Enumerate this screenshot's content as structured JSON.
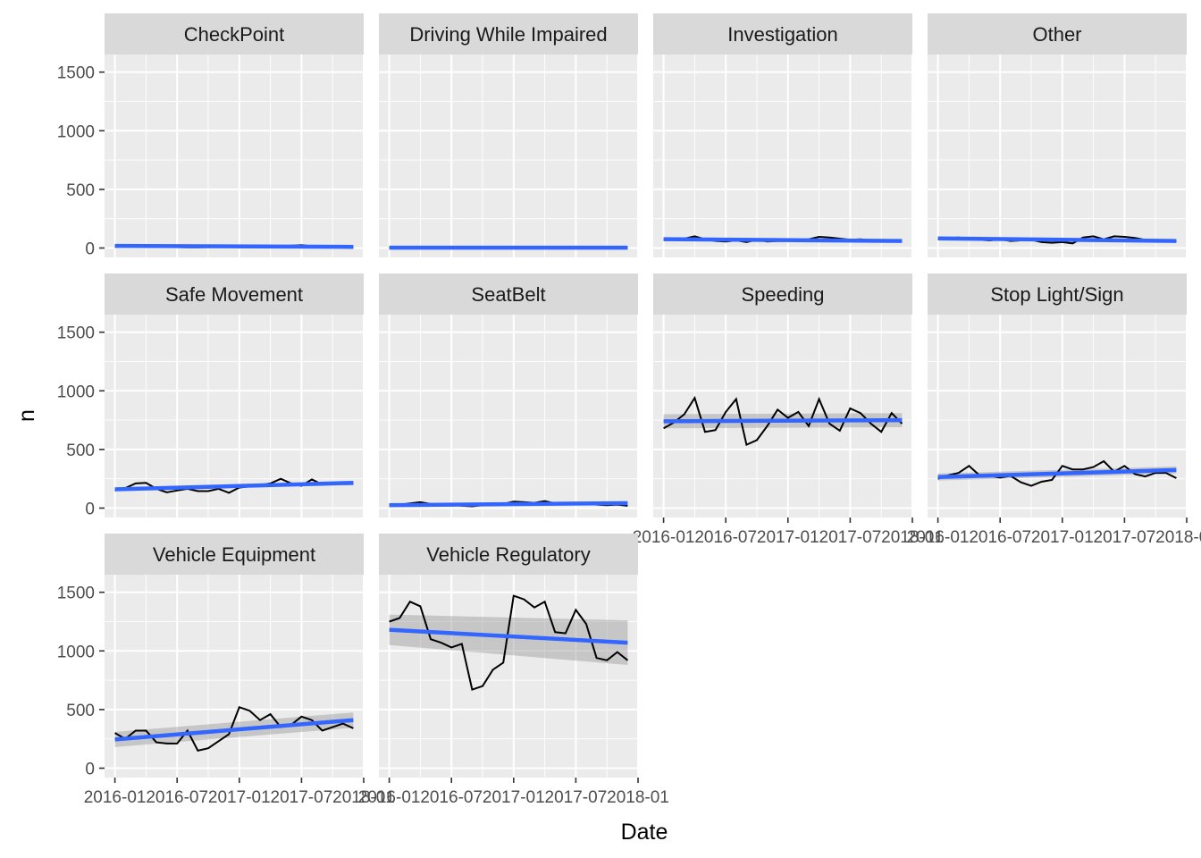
{
  "chart_data": {
    "type": "line",
    "facet_layout": "wrap",
    "xlabel": "Date",
    "ylabel": "n",
    "x_ticks": [
      "2016-01",
      "2016-07",
      "2017-01",
      "2017-07",
      "2018-01"
    ],
    "y_ticks": [
      0,
      500,
      1000,
      1500
    ],
    "ylim": [
      -80,
      1650
    ],
    "xlim": [
      "2015-12-01",
      "2018-01-01"
    ],
    "grid": true,
    "series_color": "#000000",
    "smooth_color": "#3366FF",
    "band_color": "#999999",
    "panel_bg": "#EBEBEB",
    "strip_bg": "#D9D9D9",
    "dates": [
      "2016-01",
      "2016-02",
      "2016-03",
      "2016-04",
      "2016-05",
      "2016-06",
      "2016-07",
      "2016-08",
      "2016-09",
      "2016-10",
      "2016-11",
      "2016-12",
      "2017-01",
      "2017-02",
      "2017-03",
      "2017-04",
      "2017-05",
      "2017-06",
      "2017-07",
      "2017-08",
      "2017-09",
      "2017-10",
      "2017-11",
      "2017-12"
    ],
    "panels": [
      {
        "name": "CheckPoint",
        "values": [
          10,
          12,
          18,
          25,
          15,
          10,
          8,
          6,
          5,
          8,
          10,
          12,
          8,
          7,
          12,
          10,
          15,
          20,
          25,
          15,
          12,
          10,
          8,
          5
        ],
        "trend": [
          18,
          10
        ],
        "band": [
          5,
          5
        ]
      },
      {
        "name": "Driving While Impaired",
        "values": [
          2,
          3,
          2,
          4,
          3,
          2,
          3,
          2,
          3,
          2,
          3,
          2,
          3,
          2,
          3,
          2,
          3,
          2,
          3,
          2,
          3,
          2,
          3,
          2
        ],
        "trend": [
          3,
          3
        ],
        "band": [
          2,
          2
        ]
      },
      {
        "name": "Investigation",
        "values": [
          68,
          72,
          80,
          100,
          75,
          60,
          55,
          65,
          50,
          70,
          55,
          60,
          62,
          70,
          75,
          95,
          90,
          80,
          70,
          75,
          65,
          55,
          60,
          55
        ],
        "trend": [
          75,
          60
        ],
        "band": [
          8,
          8
        ]
      },
      {
        "name": "Other",
        "values": [
          75,
          85,
          90,
          80,
          70,
          65,
          75,
          60,
          65,
          70,
          50,
          45,
          50,
          40,
          90,
          100,
          75,
          100,
          95,
          85,
          70,
          65,
          60,
          55
        ],
        "trend": [
          82,
          60
        ],
        "band": [
          8,
          8
        ]
      },
      {
        "name": "Safe Movement",
        "values": [
          150,
          170,
          210,
          215,
          165,
          135,
          150,
          165,
          145,
          145,
          165,
          130,
          175,
          185,
          195,
          210,
          250,
          210,
          190,
          245,
          200,
          210,
          205,
          205
        ],
        "trend": [
          160,
          215
        ],
        "band": [
          15,
          15
        ]
      },
      {
        "name": "SeatBelt",
        "values": [
          25,
          30,
          40,
          50,
          35,
          25,
          30,
          20,
          15,
          25,
          30,
          35,
          55,
          50,
          45,
          60,
          40,
          35,
          40,
          35,
          30,
          25,
          30,
          20
        ],
        "trend": [
          25,
          42
        ],
        "band": [
          6,
          6
        ]
      },
      {
        "name": "Speeding",
        "values": [
          680,
          730,
          800,
          940,
          650,
          665,
          820,
          930,
          540,
          580,
          700,
          840,
          770,
          820,
          700,
          930,
          720,
          660,
          850,
          810,
          720,
          650,
          810,
          720
        ],
        "trend": [
          740,
          750
        ],
        "band": [
          60,
          60
        ]
      },
      {
        "name": "Stop Light/Sign",
        "values": [
          250,
          280,
          300,
          360,
          280,
          275,
          260,
          275,
          220,
          190,
          225,
          240,
          360,
          330,
          330,
          350,
          400,
          310,
          360,
          290,
          270,
          300,
          300,
          255
        ],
        "trend": [
          265,
          325
        ],
        "band": [
          30,
          30
        ]
      },
      {
        "name": "Vehicle Equipment",
        "values": [
          300,
          250,
          320,
          320,
          220,
          210,
          210,
          320,
          150,
          170,
          230,
          290,
          520,
          490,
          410,
          460,
          350,
          370,
          440,
          410,
          320,
          350,
          380,
          340
        ],
        "trend": [
          245,
          410
        ],
        "band": [
          65,
          65
        ]
      },
      {
        "name": "Vehicle Regulatory",
        "values": [
          1250,
          1280,
          1420,
          1380,
          1100,
          1070,
          1030,
          1060,
          670,
          700,
          840,
          900,
          1470,
          1440,
          1370,
          1420,
          1160,
          1150,
          1350,
          1230,
          940,
          920,
          990,
          920
        ],
        "trend": [
          1180,
          1070
        ],
        "band": [
          130,
          190
        ]
      }
    ]
  }
}
